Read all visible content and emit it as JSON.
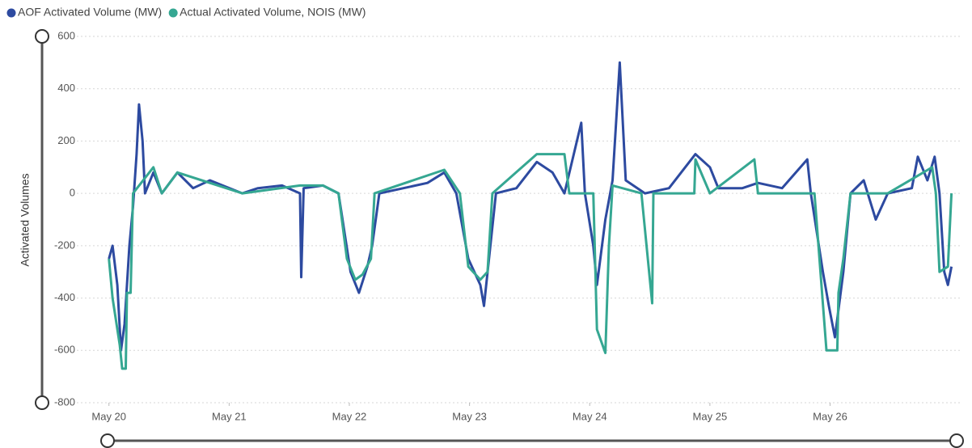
{
  "chart_data": {
    "type": "line",
    "y_label": "Activated Volumes",
    "xlim": [
      -0.2,
      7.1
    ],
    "xticks": [
      {
        "value": 0,
        "label": "May 20"
      },
      {
        "value": 1,
        "label": "May 21"
      },
      {
        "value": 2,
        "label": "May 22"
      },
      {
        "value": 3,
        "label": "May 23"
      },
      {
        "value": 4,
        "label": "May 24"
      },
      {
        "value": 5,
        "label": "May 25"
      },
      {
        "value": 6,
        "label": "May 26"
      }
    ],
    "ylim": [
      -800,
      600
    ],
    "yticks": [
      -800,
      -600,
      -400,
      -200,
      0,
      200,
      400,
      600
    ],
    "grid": true,
    "legend": "top-left",
    "series": [
      {
        "name": "AOF Activated Volume (MW)",
        "color": "#2d4aa0",
        "x": [
          0,
          0.03,
          0.07,
          0.1,
          0.13,
          0.17,
          0.2,
          0.23,
          0.25,
          0.28,
          0.3,
          0.37,
          0.44,
          0.57,
          0.7,
          0.84,
          1.11,
          1.24,
          1.44,
          1.59,
          1.6,
          1.62,
          1.78,
          1.91,
          2.01,
          2.08,
          2.15,
          2.19,
          2.25,
          2.45,
          2.65,
          2.79,
          2.89,
          2.99,
          3.09,
          3.12,
          3.22,
          3.39,
          3.56,
          3.69,
          3.79,
          3.93,
          3.96,
          4.03,
          4.06,
          4.13,
          4.19,
          4.25,
          4.3,
          4.46,
          4.66,
          4.88,
          5,
          5.07,
          5.27,
          5.4,
          5.6,
          5.81,
          5.84,
          5.94,
          5.99,
          6.04,
          6.11,
          6.17,
          6.28,
          6.38,
          6.48,
          6.68,
          6.73,
          6.81,
          6.87,
          6.91,
          6.95,
          6.98,
          7.01
        ],
        "values": [
          -250,
          -200,
          -350,
          -600,
          -500,
          -200,
          -50,
          150,
          340,
          200,
          0,
          80,
          0,
          80,
          20,
          50,
          0,
          20,
          30,
          0,
          -320,
          20,
          30,
          0,
          -300,
          -380,
          -280,
          -200,
          0,
          20,
          40,
          80,
          0,
          -250,
          -350,
          -430,
          0,
          20,
          120,
          80,
          0,
          270,
          0,
          -200,
          -350,
          -100,
          50,
          500,
          50,
          0,
          20,
          150,
          100,
          20,
          20,
          40,
          20,
          130,
          0,
          -300,
          -430,
          -550,
          -300,
          0,
          50,
          -100,
          0,
          20,
          140,
          50,
          140,
          0,
          -300,
          -350,
          -280
        ]
      },
      {
        "name": "Actual Activated Volume, NOIS (MW)",
        "color": "#35a792",
        "x": [
          0,
          0.03,
          0.09,
          0.11,
          0.14,
          0.15,
          0.18,
          0.2,
          0.37,
          0.44,
          0.57,
          1.11,
          1.59,
          1.78,
          1.91,
          1.98,
          2.05,
          2.11,
          2.18,
          2.21,
          2.79,
          2.92,
          2.99,
          3.09,
          3.15,
          3.19,
          3.56,
          3.79,
          3.83,
          4.03,
          4.06,
          4.13,
          4.16,
          4.19,
          4.43,
          4.52,
          4.53,
          4.87,
          4.88,
          5,
          5.37,
          5.4,
          5.87,
          5.97,
          6.06,
          6.07,
          6.11,
          6.17,
          6.48,
          6.85,
          6.88,
          6.91,
          6.98,
          7.01
        ],
        "values": [
          -250,
          -400,
          -580,
          -670,
          -670,
          -380,
          -380,
          0,
          100,
          0,
          80,
          0,
          30,
          30,
          0,
          -250,
          -330,
          -310,
          -250,
          0,
          90,
          0,
          -280,
          -330,
          -300,
          0,
          150,
          150,
          0,
          0,
          -520,
          -610,
          -200,
          30,
          0,
          -420,
          0,
          0,
          130,
          0,
          130,
          0,
          0,
          -600,
          -600,
          -380,
          -250,
          0,
          0,
          100,
          0,
          -300,
          -280,
          0
        ]
      }
    ]
  }
}
